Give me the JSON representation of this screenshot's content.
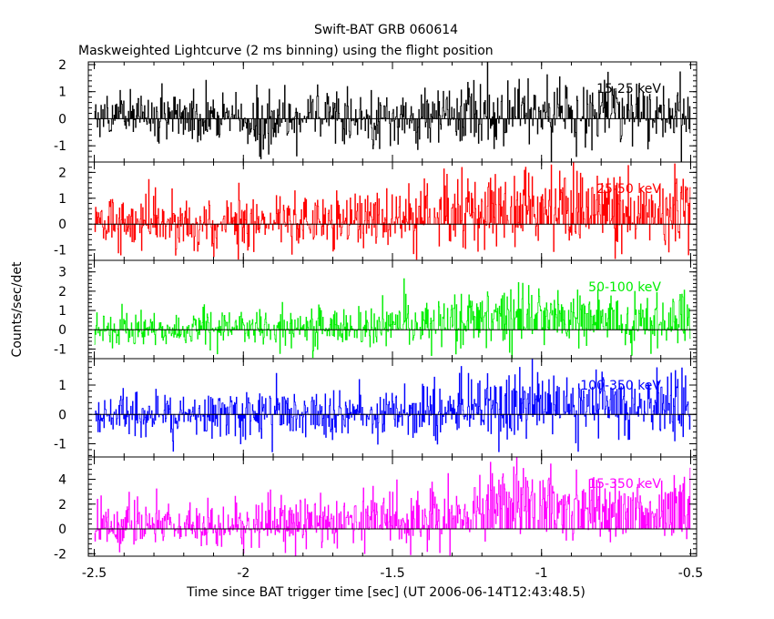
{
  "chart_data": {
    "type": "line",
    "title": "Swift-BAT GRB 060614",
    "subtitle": "Maskweighted Lightcurve (2 ms binning) using the flight position",
    "xlabel": "Time since BAT trigger time [sec] (UT 2006-06-14T12:43:48.5)",
    "ylabel": "Counts/sec/det",
    "xlim": [
      -2.52,
      -0.48
    ],
    "x_ticks": [
      "-2.5",
      "-2",
      "-1.5",
      "-1",
      "-0.5"
    ],
    "x_tick_values": [
      -2.5,
      -2.0,
      -1.5,
      -1.0,
      -0.5
    ],
    "bin_width_sec": 0.002,
    "x_range": [
      -2.5,
      -0.5
    ],
    "zero_line": true,
    "panels": [
      {
        "name": "15-25 keV",
        "color": "#000000",
        "ylim": [
          -1.6,
          2.1
        ],
        "y_ticks": [
          "-1",
          "0",
          "1",
          "2"
        ],
        "y_tick_values": [
          -1,
          0,
          1,
          2
        ],
        "profile": [
          {
            "t": -2.5,
            "mean": 0.0,
            "sd": 0.5
          },
          {
            "t": -1.5,
            "mean": 0.05,
            "sd": 0.52
          },
          {
            "t": -1.2,
            "mean": 0.15,
            "sd": 0.6
          },
          {
            "t": -0.5,
            "mean": 0.25,
            "sd": 0.62
          }
        ]
      },
      {
        "name": "25-50 keV",
        "color": "#ff0000",
        "ylim": [
          -1.4,
          2.4
        ],
        "y_ticks": [
          "-1",
          "0",
          "1",
          "2"
        ],
        "y_tick_values": [
          -1,
          0,
          1,
          2
        ],
        "profile": [
          {
            "t": -2.5,
            "mean": 0.0,
            "sd": 0.5
          },
          {
            "t": -1.6,
            "mean": 0.1,
            "sd": 0.55
          },
          {
            "t": -1.2,
            "mean": 0.35,
            "sd": 0.7
          },
          {
            "t": -1.05,
            "mean": 0.8,
            "sd": 0.75
          },
          {
            "t": -0.7,
            "mean": 0.5,
            "sd": 0.7
          },
          {
            "t": -0.5,
            "mean": 0.6,
            "sd": 0.7
          }
        ]
      },
      {
        "name": "50-100 keV",
        "color": "#00ee00",
        "ylim": [
          -1.5,
          3.6
        ],
        "y_ticks": [
          "-1",
          "0",
          "1",
          "2",
          "3"
        ],
        "y_tick_values": [
          -1,
          0,
          1,
          2,
          3
        ],
        "profile": [
          {
            "t": -2.5,
            "mean": 0.0,
            "sd": 0.45
          },
          {
            "t": -1.6,
            "mean": 0.2,
            "sd": 0.55
          },
          {
            "t": -1.25,
            "mean": 0.5,
            "sd": 0.7
          },
          {
            "t": -1.1,
            "mean": 1.0,
            "sd": 0.85
          },
          {
            "t": -0.8,
            "mean": 0.6,
            "sd": 0.75
          },
          {
            "t": -0.5,
            "mean": 0.5,
            "sd": 0.7
          }
        ]
      },
      {
        "name": "100-350 keV",
        "color": "#0000ff",
        "ylim": [
          -1.45,
          1.9
        ],
        "y_ticks": [
          "-1",
          "0",
          "1"
        ],
        "y_tick_values": [
          -1,
          0,
          1
        ],
        "profile": [
          {
            "t": -2.5,
            "mean": 0.0,
            "sd": 0.4
          },
          {
            "t": -1.5,
            "mean": 0.05,
            "sd": 0.45
          },
          {
            "t": -1.2,
            "mean": 0.2,
            "sd": 0.55
          },
          {
            "t": -1.05,
            "mean": 0.4,
            "sd": 0.6
          },
          {
            "t": -0.5,
            "mean": 0.3,
            "sd": 0.55
          }
        ]
      },
      {
        "name": "15-350 keV",
        "color": "#ff00ff",
        "ylim": [
          -2.2,
          5.8
        ],
        "y_ticks": [
          "-2",
          "0",
          "2",
          "4"
        ],
        "y_tick_values": [
          -2,
          0,
          2,
          4
        ],
        "profile": [
          {
            "t": -2.5,
            "mean": 0.2,
            "sd": 0.9
          },
          {
            "t": -1.7,
            "mean": 0.5,
            "sd": 1.0
          },
          {
            "t": -1.3,
            "mean": 1.2,
            "sd": 1.2
          },
          {
            "t": -1.1,
            "mean": 2.3,
            "sd": 1.4
          },
          {
            "t": -0.8,
            "mean": 1.6,
            "sd": 1.25
          },
          {
            "t": -0.5,
            "mean": 1.8,
            "sd": 1.25
          }
        ]
      }
    ]
  }
}
